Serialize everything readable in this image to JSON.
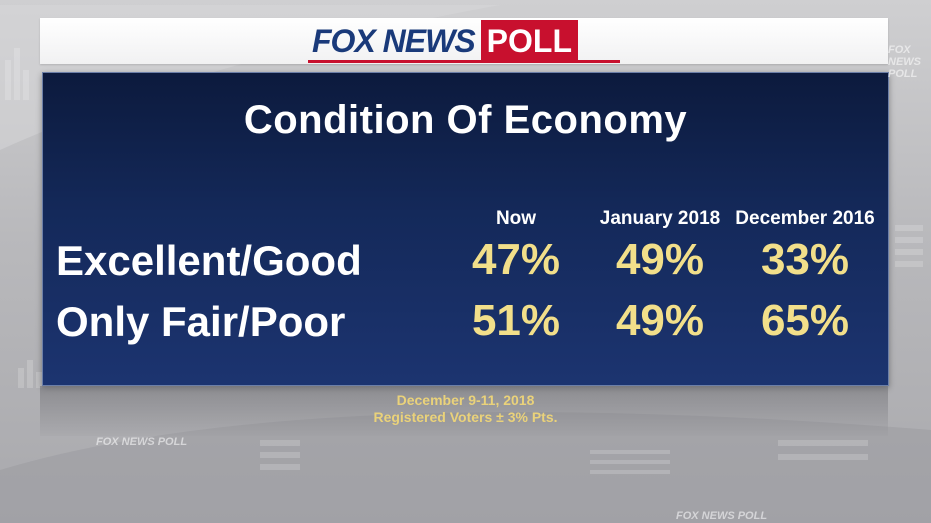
{
  "logo": {
    "brand": "FOX NEWS",
    "suffix": "POLL"
  },
  "chart_data": {
    "type": "table",
    "title": "Condition Of Economy",
    "columns": [
      "Now",
      "January 2018",
      "December 2016"
    ],
    "rows": [
      {
        "label": "Excellent/Good",
        "values": [
          "47%",
          "49%",
          "33%"
        ]
      },
      {
        "label": "Only Fair/Poor",
        "values": [
          "51%",
          "49%",
          "65%"
        ]
      }
    ]
  },
  "source": {
    "dates": "December 9-11, 2018",
    "sample": "Registered Voters ± 3% Pts."
  },
  "watermarks": [
    "FOX NEWS POLL",
    "FOX NEWS POLL",
    "FOX NEWS POLL"
  ],
  "colors": {
    "panel": "#14295a",
    "value_text": "#f2df8a",
    "source_text": "#ead27a",
    "poll_red": "#c8102e",
    "brand_blue": "#1a3a7a"
  }
}
